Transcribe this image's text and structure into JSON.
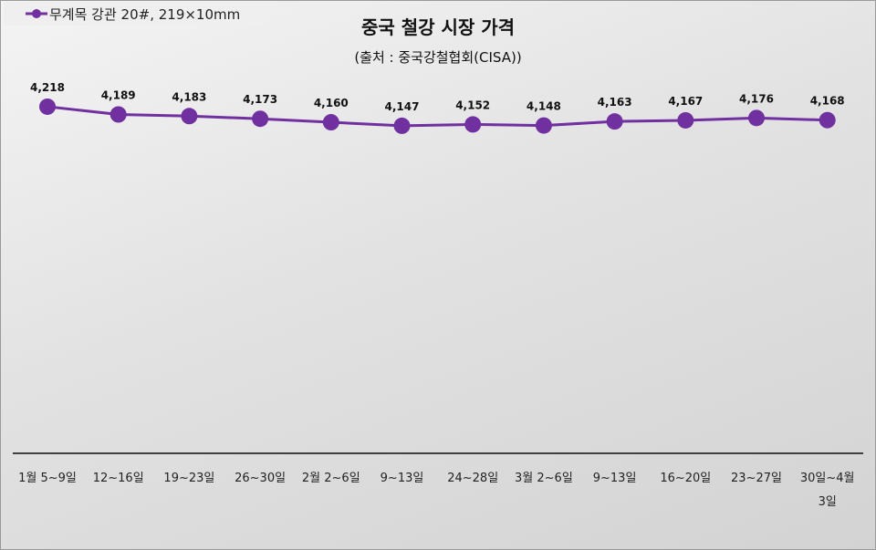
{
  "chart_data": {
    "type": "line",
    "title": "중국 철강 시장 가격",
    "subtitle": "(출처 : 중국강철협회(CISA))",
    "categories": [
      "1월 5~9일",
      "12~16일",
      "19~23일",
      "26~30일",
      "2월 2~6일",
      "9~13일",
      "24~28일",
      "3월 2~6일",
      "9~13일",
      "16~20일",
      "23~27일",
      "30일~4월 3일"
    ],
    "series": [
      {
        "name": "무계목 강관 20#, 219×10mm",
        "values": [
          4218,
          4189,
          4183,
          4173,
          4160,
          4147,
          4152,
          4148,
          4163,
          4167,
          4176,
          4168
        ],
        "labels": [
          "4,218",
          "4,189",
          "4,183",
          "4,173",
          "4,160",
          "4,147",
          "4,152",
          "4,148",
          "4,163",
          "4,167",
          "4,176",
          "4,168"
        ]
      }
    ],
    "ylim": [
      2930,
      4250
    ],
    "grid": false,
    "legend": "top-left",
    "colors": {
      "series": "#7030a0",
      "axis": "#404040"
    }
  }
}
